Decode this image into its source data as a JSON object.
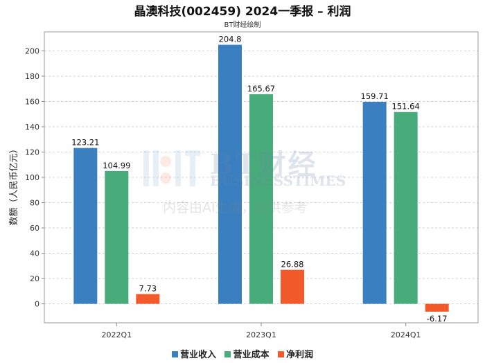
{
  "header": {
    "title": "晶澳科技(002459) 2024一季报 – 利润",
    "subtitle": "BT财经绘制"
  },
  "watermark": {
    "brand": "BT财经",
    "brand_en": "BUSINESSTIMES",
    "note": "内容由AI生成，仅供参考"
  },
  "colors": {
    "revenue": "#3a7fc0",
    "cost": "#48ab7a",
    "profit": "#f25a2c"
  },
  "chart_data": {
    "type": "bar",
    "title": "晶澳科技(002459) 2024一季报 – 利润",
    "subtitle": "BT财经绘制",
    "xlabel": "",
    "ylabel": "数额（人民币亿元）",
    "categories": [
      "2022Q1",
      "2023Q1",
      "2024Q1"
    ],
    "series": [
      {
        "name": "营业收入",
        "values": [
          123.21,
          204.8,
          159.71
        ],
        "labels": [
          "123.21",
          "204.8",
          "159.71"
        ]
      },
      {
        "name": "营业成本",
        "values": [
          104.99,
          165.67,
          151.64
        ],
        "labels": [
          "104.99",
          "165.67",
          "151.64"
        ]
      },
      {
        "name": "净利润",
        "values": [
          7.73,
          26.88,
          -6.17
        ],
        "labels": [
          "7.73",
          "26.88",
          "-6.17"
        ]
      }
    ],
    "ylim": [
      -15,
      215
    ],
    "yticks": [
      0,
      20,
      40,
      60,
      80,
      100,
      120,
      140,
      160,
      180,
      200
    ],
    "grid": true,
    "legend": "bottom"
  }
}
